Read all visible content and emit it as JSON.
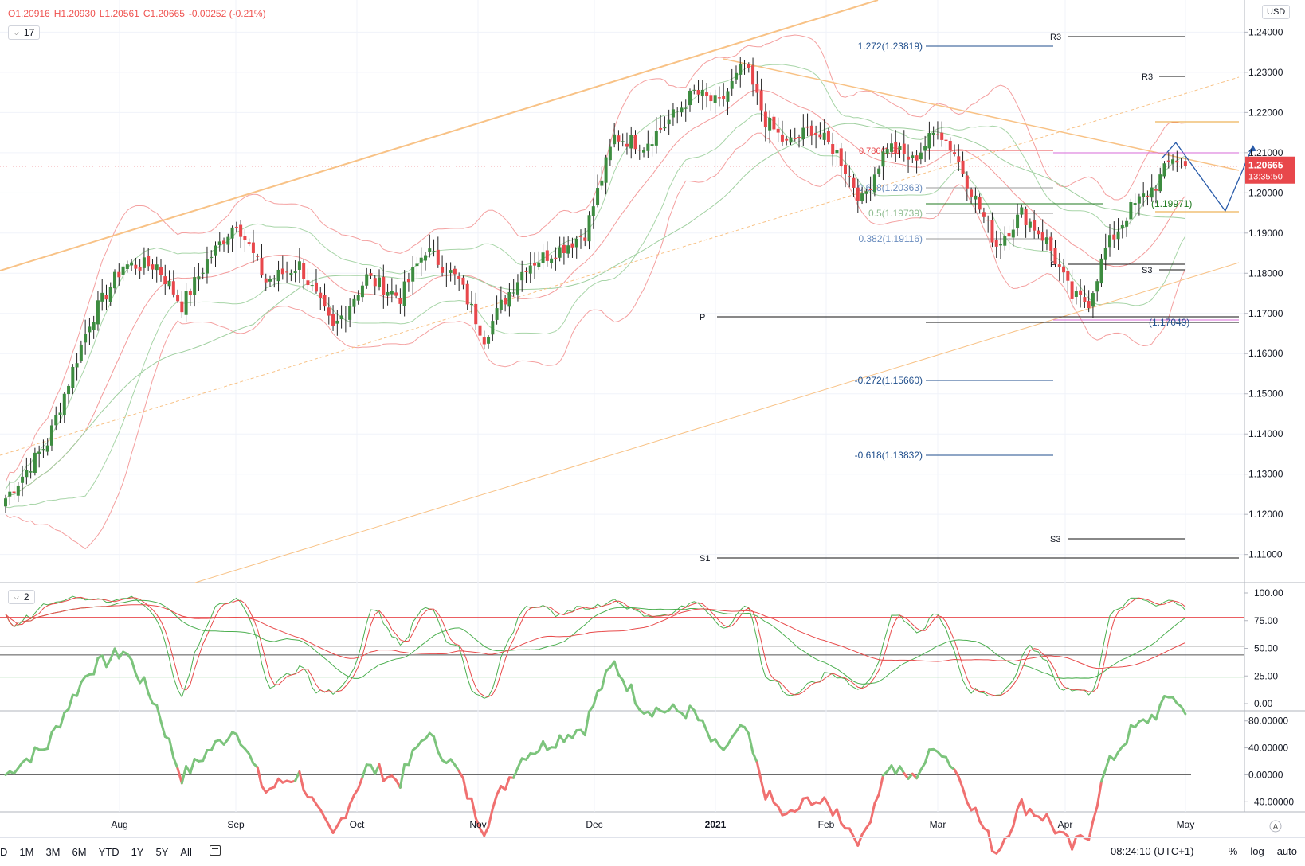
{
  "header": {
    "open": "O1.20916",
    "high": "H1.20930",
    "low": "L1.20561",
    "close": "C1.20665",
    "change": "-0.00252 (-0.21%)"
  },
  "main_pane": {
    "interval_value": "17",
    "currency_button": "USD"
  },
  "stoch_pane": {
    "value": "2"
  },
  "price_label": {
    "price": "1.20665",
    "countdown": "13:35:50"
  },
  "colors": {
    "up": "#3d8c40",
    "down": "#e8474b",
    "trend": "#f8c286",
    "bb_red": "#f4a0a0",
    "bb_green": "#a8d5a8",
    "fib": "#1f4e8c",
    "stoch_green": "#4caf50",
    "stoch_red": "#e84b4b"
  },
  "price_axis": {
    "min": 1.103,
    "max": 1.248,
    "ticks": [
      "1.24000",
      "1.23000",
      "1.22000",
      "1.21000",
      "1.20000",
      "1.19000",
      "1.18000",
      "1.17000",
      "1.16000",
      "1.15000",
      "1.14000",
      "1.13000",
      "1.12000",
      "1.11000"
    ]
  },
  "stoch_axis": {
    "ticks": [
      "100.00",
      "75.00",
      "50.00",
      "25.00",
      "0.00"
    ]
  },
  "osc_axis": {
    "ticks": [
      "80.00000",
      "40.00000",
      "0.00000",
      "−40.00000"
    ]
  },
  "time_axis": {
    "labels": [
      "Aug",
      "Sep",
      "Oct",
      "Nov",
      "Dec",
      "2021",
      "Feb",
      "Mar",
      "Apr",
      "May"
    ]
  },
  "annotations": {
    "fib_labels": [
      "1.272(1.23819)",
      "0.618(1.20363)",
      "0.5(1.19739)",
      "0.382(1.19116)",
      "-0.272(1.15660)",
      "-0.618(1.13832)"
    ],
    "fib_partial": "0.786(1.21",
    "pivot_labels": [
      "R3",
      "R3",
      "P",
      "S3",
      "P",
      "S3",
      "S1"
    ],
    "level_labels": [
      "(1.19971)",
      "(1.17049)"
    ]
  },
  "bottom_bar": {
    "ranges": [
      "D",
      "1M",
      "3M",
      "6M",
      "YTD",
      "1Y",
      "5Y",
      "All"
    ],
    "clock": "08:24:10 (UTC+1)",
    "percent": "%",
    "log": "log",
    "auto": "auto",
    "scale_a": "A"
  },
  "chart_data": {
    "type": "candlestick",
    "instrument_quote": "USD",
    "x_labels": [
      "Aug",
      "Sep",
      "Oct",
      "Nov",
      "Dec",
      "2021",
      "Feb",
      "Mar",
      "Apr",
      "May"
    ],
    "anchors": [
      {
        "i": 0,
        "c": 1.124
      },
      {
        "i": 10,
        "c": 1.138
      },
      {
        "i": 20,
        "c": 1.168
      },
      {
        "i": 28,
        "c": 1.182
      },
      {
        "i": 36,
        "c": 1.182
      },
      {
        "i": 42,
        "c": 1.172
      },
      {
        "i": 48,
        "c": 1.183
      },
      {
        "i": 55,
        "c": 1.193
      },
      {
        "i": 62,
        "c": 1.178
      },
      {
        "i": 70,
        "c": 1.182
      },
      {
        "i": 78,
        "c": 1.166
      },
      {
        "i": 86,
        "c": 1.179
      },
      {
        "i": 94,
        "c": 1.174
      },
      {
        "i": 100,
        "c": 1.186
      },
      {
        "i": 108,
        "c": 1.178
      },
      {
        "i": 114,
        "c": 1.164
      },
      {
        "i": 118,
        "c": 1.172
      },
      {
        "i": 124,
        "c": 1.182
      },
      {
        "i": 132,
        "c": 1.186
      },
      {
        "i": 138,
        "c": 1.19
      },
      {
        "i": 145,
        "c": 1.214
      },
      {
        "i": 152,
        "c": 1.212
      },
      {
        "i": 158,
        "c": 1.218
      },
      {
        "i": 164,
        "c": 1.225
      },
      {
        "i": 170,
        "c": 1.222
      },
      {
        "i": 176,
        "c": 1.232
      },
      {
        "i": 181,
        "c": 1.218
      },
      {
        "i": 186,
        "c": 1.212
      },
      {
        "i": 192,
        "c": 1.216
      },
      {
        "i": 198,
        "c": 1.21
      },
      {
        "i": 204,
        "c": 1.198
      },
      {
        "i": 210,
        "c": 1.212
      },
      {
        "i": 216,
        "c": 1.208
      },
      {
        "i": 222,
        "c": 1.216
      },
      {
        "i": 226,
        "c": 1.21
      },
      {
        "i": 232,
        "c": 1.196
      },
      {
        "i": 236,
        "c": 1.187
      },
      {
        "i": 242,
        "c": 1.195
      },
      {
        "i": 248,
        "c": 1.188
      },
      {
        "i": 254,
        "c": 1.174
      },
      {
        "i": 258,
        "c": 1.173
      },
      {
        "i": 262,
        "c": 1.186
      },
      {
        "i": 268,
        "c": 1.196
      },
      {
        "i": 274,
        "c": 1.202
      },
      {
        "i": 278,
        "c": 1.209
      },
      {
        "i": 281,
        "c": 1.2066
      }
    ],
    "projection": [
      1.2085,
      1.2125,
      1.1955,
      1.2118
    ],
    "stoch_range": [
      0,
      100
    ],
    "osc_range": [
      -55,
      95
    ]
  }
}
